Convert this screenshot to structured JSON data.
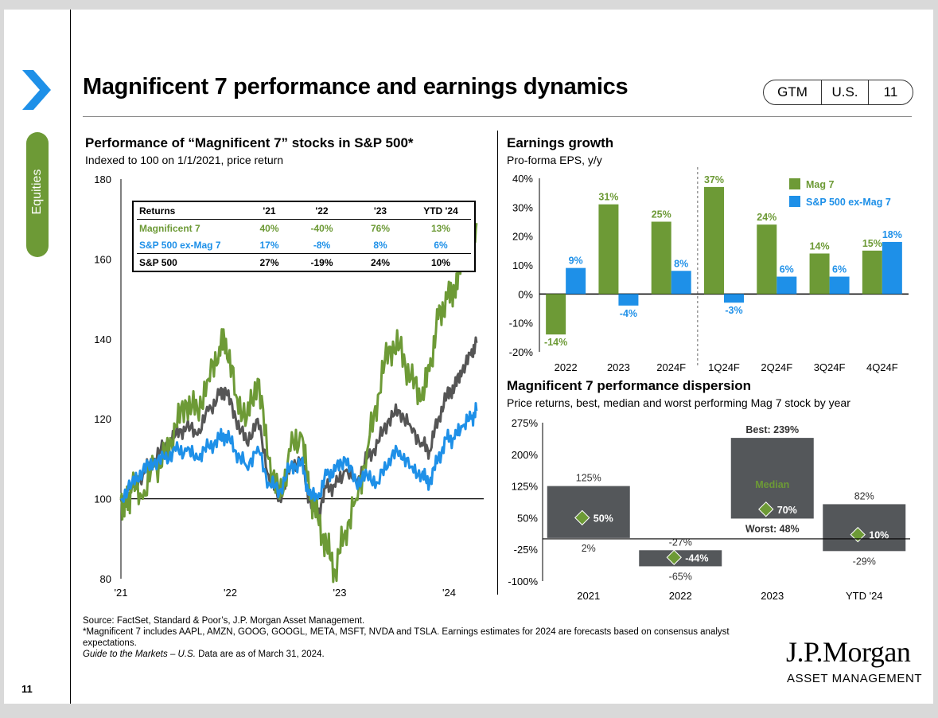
{
  "header": {
    "title": "Magnificent 7 performance and earnings dynamics",
    "badge": [
      "GTM",
      "U.S.",
      "11"
    ]
  },
  "sidebar": {
    "tab_label": "Equities",
    "page_number": "11"
  },
  "colors": {
    "mag7": "#6d9a36",
    "sp_ex": "#1e90e8",
    "sp500": "#555555",
    "dispersion_box": "#54575a",
    "median_marker": "#6d9a36"
  },
  "left_chart": {
    "title": "Performance of “Magnificent 7” stocks in S&P 500*",
    "subtitle": "Indexed to 100 on 1/1/2021, price return",
    "returns_table": {
      "headers": [
        "Returns",
        "'21",
        "'22",
        "'23",
        "YTD '24"
      ],
      "rows": [
        {
          "label": "Magnificent 7",
          "values": [
            "40%",
            "-40%",
            "76%",
            "13%"
          ]
        },
        {
          "label": "S&P 500 ex-Mag 7",
          "values": [
            "17%",
            "-8%",
            "8%",
            "6%"
          ]
        },
        {
          "label": "S&P 500",
          "values": [
            "27%",
            "-19%",
            "24%",
            "10%"
          ]
        }
      ]
    }
  },
  "right_top": {
    "title": "Earnings growth",
    "subtitle": "Pro-forma EPS, y/y"
  },
  "right_bottom": {
    "title": "Magnificent 7 performance dispersion",
    "subtitle": "Price returns, best, median and worst performing Mag 7 stock by year"
  },
  "chart_data": [
    {
      "type": "line",
      "title": "Performance of “Magnificent 7” stocks in S&P 500*",
      "subtitle": "Indexed to 100 on 1/1/2021, price return",
      "ylim": [
        80,
        180
      ],
      "yticks": [
        "80",
        "100",
        "120",
        "140",
        "160",
        "180"
      ],
      "xticks": [
        "'21",
        "'22",
        "'23",
        "'24"
      ],
      "x_range": [
        2021.0,
        2024.25
      ],
      "series": [
        {
          "name": "Magnificent 7",
          "points": [
            [
              2021.0,
              100
            ],
            [
              2021.05,
              98
            ],
            [
              2021.1,
              103
            ],
            [
              2021.2,
              100
            ],
            [
              2021.3,
              108
            ],
            [
              2021.4,
              110
            ],
            [
              2021.5,
              118
            ],
            [
              2021.6,
              124
            ],
            [
              2021.7,
              122
            ],
            [
              2021.8,
              130
            ],
            [
              2021.9,
              138
            ],
            [
              2021.96,
              140
            ],
            [
              2022.05,
              126
            ],
            [
              2022.15,
              120
            ],
            [
              2022.25,
              130
            ],
            [
              2022.35,
              110
            ],
            [
              2022.45,
              100
            ],
            [
              2022.55,
              112
            ],
            [
              2022.65,
              116
            ],
            [
              2022.72,
              102
            ],
            [
              2022.8,
              95
            ],
            [
              2022.88,
              88
            ],
            [
              2022.96,
              82
            ],
            [
              2023.05,
              92
            ],
            [
              2023.15,
              100
            ],
            [
              2023.25,
              112
            ],
            [
              2023.35,
              126
            ],
            [
              2023.45,
              138
            ],
            [
              2023.55,
              138
            ],
            [
              2023.65,
              130
            ],
            [
              2023.75,
              125
            ],
            [
              2023.82,
              132
            ],
            [
              2023.9,
              145
            ],
            [
              2023.98,
              150
            ],
            [
              2024.05,
              152
            ],
            [
              2024.12,
              160
            ],
            [
              2024.2,
              165
            ],
            [
              2024.25,
              169
            ]
          ]
        },
        {
          "name": "S&P 500 ex-Mag 7",
          "points": [
            [
              2021.0,
              100
            ],
            [
              2021.1,
              104
            ],
            [
              2021.2,
              107
            ],
            [
              2021.3,
              109
            ],
            [
              2021.4,
              110
            ],
            [
              2021.5,
              112
            ],
            [
              2021.6,
              112
            ],
            [
              2021.7,
              110
            ],
            [
              2021.8,
              113
            ],
            [
              2021.9,
              115
            ],
            [
              2021.96,
              116
            ],
            [
              2022.05,
              112
            ],
            [
              2022.15,
              108
            ],
            [
              2022.25,
              113
            ],
            [
              2022.35,
              104
            ],
            [
              2022.45,
              102
            ],
            [
              2022.55,
              108
            ],
            [
              2022.65,
              109
            ],
            [
              2022.72,
              101
            ],
            [
              2022.8,
              100
            ],
            [
              2022.88,
              106
            ],
            [
              2022.96,
              107
            ],
            [
              2023.05,
              110
            ],
            [
              2023.15,
              104
            ],
            [
              2023.25,
              106
            ],
            [
              2023.35,
              104
            ],
            [
              2023.45,
              110
            ],
            [
              2023.55,
              112
            ],
            [
              2023.65,
              108
            ],
            [
              2023.75,
              106
            ],
            [
              2023.82,
              104
            ],
            [
              2023.9,
              110
            ],
            [
              2023.98,
              115
            ],
            [
              2024.05,
              115
            ],
            [
              2024.12,
              118
            ],
            [
              2024.2,
              120
            ],
            [
              2024.25,
              122
            ]
          ]
        },
        {
          "name": "S&P 500",
          "points": [
            [
              2021.0,
              100
            ],
            [
              2021.1,
              103
            ],
            [
              2021.2,
              106
            ],
            [
              2021.3,
              110
            ],
            [
              2021.4,
              113
            ],
            [
              2021.5,
              116
            ],
            [
              2021.6,
              118
            ],
            [
              2021.7,
              116
            ],
            [
              2021.8,
              122
            ],
            [
              2021.9,
              126
            ],
            [
              2021.96,
              127
            ],
            [
              2022.05,
              120
            ],
            [
              2022.15,
              114
            ],
            [
              2022.25,
              120
            ],
            [
              2022.35,
              106
            ],
            [
              2022.45,
              100
            ],
            [
              2022.55,
              108
            ],
            [
              2022.65,
              110
            ],
            [
              2022.72,
              100
            ],
            [
              2022.8,
              96
            ],
            [
              2022.88,
              103
            ],
            [
              2022.96,
              103
            ],
            [
              2023.05,
              107
            ],
            [
              2023.15,
              104
            ],
            [
              2023.25,
              110
            ],
            [
              2023.35,
              114
            ],
            [
              2023.45,
              120
            ],
            [
              2023.55,
              122
            ],
            [
              2023.65,
              118
            ],
            [
              2023.75,
              114
            ],
            [
              2023.82,
              112
            ],
            [
              2023.9,
              120
            ],
            [
              2023.98,
              126
            ],
            [
              2024.05,
              128
            ],
            [
              2024.12,
              132
            ],
            [
              2024.2,
              136
            ],
            [
              2024.25,
              139
            ]
          ]
        }
      ]
    },
    {
      "type": "bar",
      "title": "Earnings growth",
      "subtitle": "Pro-forma EPS, y/y",
      "categories": [
        "2022",
        "2023",
        "2024F",
        "1Q24F",
        "2Q24F",
        "3Q24F",
        "4Q24F"
      ],
      "ylim": [
        -20,
        40
      ],
      "yticks": [
        "-20%",
        "-10%",
        "0%",
        "10%",
        "20%",
        "30%",
        "40%"
      ],
      "legend": "top-right",
      "series": [
        {
          "name": "Mag 7",
          "values": [
            -14,
            31,
            25,
            37,
            24,
            14,
            15
          ],
          "labels": [
            "-14%",
            "31%",
            "25%",
            "37%",
            "24%",
            "14%",
            "15%"
          ]
        },
        {
          "name": "S&P 500 ex-Mag 7",
          "values": [
            9,
            -4,
            8,
            -3,
            6,
            6,
            18
          ],
          "labels": [
            "9%",
            "-4%",
            "8%",
            "-3%",
            "6%",
            "6%",
            "18%"
          ]
        }
      ]
    },
    {
      "type": "bar",
      "title": "Magnificent 7 performance dispersion",
      "subtitle": "Price returns, best, median and worst performing Mag 7 stock by year",
      "categories": [
        "2021",
        "2022",
        "2023",
        "YTD '24"
      ],
      "ylim": [
        -100,
        275
      ],
      "yticks": [
        "-100%",
        "-25%",
        "50%",
        "125%",
        "200%",
        "275%"
      ],
      "ranges": [
        {
          "best": 125,
          "median": 50,
          "worst": 2,
          "best_label": "125%",
          "median_label": "50%",
          "worst_label": "2%"
        },
        {
          "best": -27,
          "median": -44,
          "worst": -65,
          "best_label": "-27%",
          "median_label": "-44%",
          "worst_label": "-65%"
        },
        {
          "best": 239,
          "median": 70,
          "worst": 48,
          "best_label": "Best: 239%",
          "median_label": "70%",
          "worst_label": "Worst: 48%"
        },
        {
          "best": 82,
          "median": 10,
          "worst": -29,
          "best_label": "82%",
          "median_label": "10%",
          "worst_label": "-29%"
        }
      ],
      "median_word": "Median"
    }
  ],
  "footer": {
    "source": "Source: FactSet, Standard & Poor’s, J.P. Morgan Asset Management.",
    "note": "*Magnificent 7 includes AAPL, AMZN, GOOG, GOOGL, META, MSFT, NVDA and TSLA. Earnings estimates for 2024 are forecasts based on consensus analyst expectations.",
    "guide_italic": "Guide to the Markets – U.S.",
    "guide_rest": " Data are as of March 31, 2024.",
    "brand": "J.P.Morgan",
    "brand_sub": "ASSET MANAGEMENT"
  }
}
